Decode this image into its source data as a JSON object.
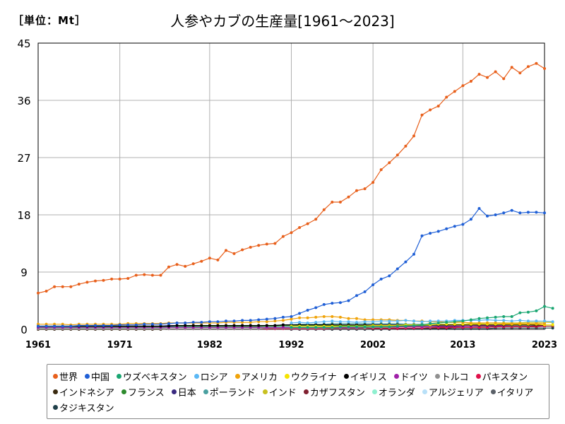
{
  "header": {
    "unit_label": "［単位：Mt］",
    "title": "人参やカブの生産量[1961～2023]"
  },
  "chart_data": {
    "type": "line",
    "title": "人参やカブの生産量[1961～2023]",
    "unit": "［単位：Mt］",
    "xlim": [
      1961,
      2023
    ],
    "ylim": [
      0,
      45
    ],
    "x_ticks": [
      1961,
      1971,
      1982,
      1992,
      2002,
      2013,
      2023
    ],
    "y_ticks": [
      0,
      9,
      18,
      27,
      36,
      45
    ],
    "grid": true,
    "legend_position": "bottom",
    "series": [
      {
        "name": "世界",
        "color": "#e8601c",
        "start": 1961,
        "values": [
          5.7,
          6.0,
          6.7,
          6.7,
          6.7,
          7.1,
          7.4,
          7.6,
          7.7,
          7.9,
          7.9,
          8.0,
          8.5,
          8.6,
          8.5,
          8.5,
          9.8,
          10.2,
          9.9,
          10.3,
          10.7,
          11.2,
          10.9,
          12.4,
          11.9,
          12.5,
          12.9,
          13.2,
          13.4,
          13.5,
          14.6,
          15.2,
          16.0,
          16.6,
          17.3,
          18.8,
          20.0,
          20.0,
          20.8,
          21.8,
          22.1,
          23.1,
          25.1,
          26.2,
          27.4,
          28.8,
          30.4,
          33.7,
          34.5,
          35.1,
          36.5,
          37.4,
          38.3,
          39.0,
          40.1,
          39.6,
          40.5,
          39.4,
          41.2,
          40.3,
          41.3,
          41.8,
          41.0
        ]
      },
      {
        "name": "中国",
        "color": "#1f5fd6",
        "start": 1961,
        "values": [
          0.5,
          0.5,
          0.5,
          0.5,
          0.5,
          0.6,
          0.6,
          0.6,
          0.6,
          0.6,
          0.7,
          0.7,
          0.7,
          0.8,
          0.8,
          0.8,
          0.9,
          1.0,
          1.0,
          1.1,
          1.1,
          1.2,
          1.2,
          1.3,
          1.3,
          1.4,
          1.4,
          1.5,
          1.6,
          1.7,
          1.9,
          2.0,
          2.5,
          3.0,
          3.4,
          3.9,
          4.1,
          4.2,
          4.5,
          5.3,
          5.9,
          7.0,
          7.9,
          8.4,
          9.5,
          10.6,
          11.8,
          14.7,
          15.1,
          15.4,
          15.8,
          16.2,
          16.5,
          17.3,
          19.0,
          17.8,
          18.0,
          18.3,
          18.7,
          18.3,
          18.4,
          18.4,
          18.3
        ]
      },
      {
        "name": "ウズベキスタン",
        "color": "#1aa672",
        "start": 1992,
        "values": [
          0.3,
          0.3,
          0.3,
          0.3,
          0.3,
          0.3,
          0.4,
          0.4,
          0.4,
          0.4,
          0.4,
          0.4,
          0.4,
          0.5,
          0.5,
          0.6,
          0.7,
          0.9,
          1.0,
          1.1,
          1.2,
          1.3,
          1.5,
          1.7,
          1.8,
          1.9,
          2.0,
          2.0,
          2.6,
          2.7,
          2.9,
          3.6,
          3.3
        ]
      },
      {
        "name": "ロシア",
        "color": "#5bb8f5",
        "start": 1992,
        "values": [
          1.0,
          1.1,
          1.0,
          1.1,
          1.2,
          1.3,
          1.2,
          1.2,
          1.1,
          1.2,
          1.2,
          1.3,
          1.3,
          1.3,
          1.4,
          1.3,
          1.2,
          1.3,
          1.3,
          1.3,
          1.4,
          1.4,
          1.4,
          1.4,
          1.5,
          1.4,
          1.4,
          1.3,
          1.4,
          1.3,
          1.3,
          1.3,
          1.2
        ]
      },
      {
        "name": "アメリカ",
        "color": "#f0a30a",
        "start": 1961,
        "values": [
          0.8,
          0.8,
          0.8,
          0.8,
          0.7,
          0.8,
          0.8,
          0.8,
          0.8,
          0.8,
          0.8,
          0.9,
          0.9,
          0.9,
          0.9,
          0.9,
          1.0,
          1.0,
          1.0,
          1.0,
          1.0,
          1.0,
          1.0,
          1.1,
          1.1,
          1.1,
          1.1,
          1.2,
          1.2,
          1.3,
          1.4,
          1.6,
          1.8,
          1.8,
          1.9,
          2.0,
          2.0,
          1.9,
          1.7,
          1.7,
          1.5,
          1.5,
          1.5,
          1.5,
          1.4,
          1.4,
          1.3,
          1.3,
          1.2,
          1.2,
          1.1,
          1.1,
          1.1,
          1.0,
          1.0,
          1.0,
          1.0,
          0.9,
          0.9,
          0.9,
          0.9,
          0.9,
          0.9
        ]
      },
      {
        "name": "ウクライナ",
        "color": "#f5e300",
        "start": 1992,
        "values": [
          0.5,
          0.5,
          0.5,
          0.5,
          0.5,
          0.5,
          0.5,
          0.5,
          0.5,
          0.5,
          0.6,
          0.6,
          0.6,
          0.6,
          0.7,
          0.7,
          0.7,
          0.7,
          0.8,
          0.8,
          0.8,
          0.8,
          0.8,
          0.8,
          0.8,
          0.8,
          0.8,
          0.8,
          0.8,
          0.8,
          0.8,
          0.7,
          0.7
        ]
      },
      {
        "name": "イギリス",
        "color": "#000000",
        "start": 1961,
        "values": [
          0.5,
          0.5,
          0.5,
          0.5,
          0.5,
          0.5,
          0.5,
          0.5,
          0.5,
          0.5,
          0.5,
          0.5,
          0.5,
          0.5,
          0.5,
          0.5,
          0.5,
          0.6,
          0.6,
          0.6,
          0.6,
          0.6,
          0.6,
          0.6,
          0.6,
          0.6,
          0.6,
          0.6,
          0.6,
          0.6,
          0.7,
          0.7,
          0.7,
          0.7,
          0.7,
          0.7,
          0.7,
          0.7,
          0.7,
          0.7,
          0.7,
          0.7,
          0.7,
          0.7,
          0.7,
          0.7,
          0.7,
          0.7,
          0.7,
          0.7,
          0.7,
          0.7,
          0.7,
          0.7,
          0.7,
          0.7,
          0.7,
          0.7,
          0.7,
          0.7,
          0.7,
          0.7,
          0.7
        ]
      },
      {
        "name": "ドイツ",
        "color": "#a020a8",
        "start": 1961,
        "values": [
          0.3,
          0.3,
          0.3,
          0.3,
          0.3,
          0.3,
          0.3,
          0.3,
          0.3,
          0.3,
          0.3,
          0.3,
          0.3,
          0.3,
          0.3,
          0.3,
          0.3,
          0.3,
          0.3,
          0.3,
          0.3,
          0.3,
          0.3,
          0.3,
          0.3,
          0.3,
          0.3,
          0.3,
          0.3,
          0.3,
          0.3,
          0.3,
          0.3,
          0.3,
          0.3,
          0.3,
          0.3,
          0.3,
          0.3,
          0.3,
          0.4,
          0.4,
          0.4,
          0.4,
          0.4,
          0.4,
          0.4,
          0.4,
          0.5,
          0.5,
          0.5,
          0.5,
          0.5,
          0.5,
          0.6,
          0.6,
          0.6,
          0.6,
          0.7,
          0.7,
          0.7,
          0.7,
          0.7
        ]
      },
      {
        "name": "トルコ",
        "color": "#909090",
        "start": 1961,
        "values": [
          0.1,
          0.1,
          0.1,
          0.1,
          0.1,
          0.1,
          0.1,
          0.1,
          0.1,
          0.1,
          0.1,
          0.1,
          0.1,
          0.1,
          0.1,
          0.1,
          0.1,
          0.1,
          0.1,
          0.1,
          0.1,
          0.1,
          0.1,
          0.1,
          0.1,
          0.1,
          0.1,
          0.1,
          0.2,
          0.2,
          0.2,
          0.2,
          0.2,
          0.2,
          0.2,
          0.2,
          0.2,
          0.2,
          0.2,
          0.2,
          0.2,
          0.3,
          0.3,
          0.3,
          0.4,
          0.4,
          0.4,
          0.4,
          0.4,
          0.5,
          0.5,
          0.6,
          0.6,
          0.6,
          0.6,
          0.6,
          0.6,
          0.6,
          0.6,
          0.6,
          0.6,
          0.7,
          0.7
        ]
      },
      {
        "name": "パキスタン",
        "color": "#e0104a",
        "start": 1961,
        "values": [
          0.1,
          0.1,
          0.1,
          0.1,
          0.1,
          0.1,
          0.1,
          0.1,
          0.1,
          0.1,
          0.1,
          0.1,
          0.1,
          0.1,
          0.1,
          0.1,
          0.1,
          0.1,
          0.1,
          0.1,
          0.1,
          0.1,
          0.1,
          0.1,
          0.1,
          0.1,
          0.1,
          0.1,
          0.1,
          0.1,
          0.1,
          0.1,
          0.1,
          0.1,
          0.1,
          0.1,
          0.2,
          0.2,
          0.2,
          0.2,
          0.2,
          0.2,
          0.2,
          0.2,
          0.2,
          0.2,
          0.2,
          0.2,
          0.3,
          0.3,
          0.3,
          0.3,
          0.3,
          0.3,
          0.3,
          0.3,
          0.4,
          0.4,
          0.4,
          0.4,
          0.4,
          0.5,
          0.5
        ]
      },
      {
        "name": "インドネシア",
        "color": "#3a2a10",
        "start": 1961,
        "values": [
          0.0,
          0.0,
          0.0,
          0.0,
          0.0,
          0.0,
          0.0,
          0.0,
          0.0,
          0.0,
          0.0,
          0.0,
          0.0,
          0.0,
          0.0,
          0.0,
          0.1,
          0.1,
          0.1,
          0.1,
          0.1,
          0.1,
          0.1,
          0.1,
          0.1,
          0.1,
          0.1,
          0.1,
          0.1,
          0.1,
          0.2,
          0.2,
          0.2,
          0.2,
          0.2,
          0.2,
          0.2,
          0.3,
          0.3,
          0.3,
          0.3,
          0.3,
          0.3,
          0.3,
          0.4,
          0.4,
          0.4,
          0.4,
          0.4,
          0.4,
          0.4,
          0.4,
          0.5,
          0.5,
          0.5,
          0.5,
          0.5,
          0.6,
          0.6,
          0.6,
          0.6,
          0.6,
          0.6
        ]
      },
      {
        "name": "フランス",
        "color": "#2e8b2e",
        "start": 1961,
        "values": [
          0.4,
          0.4,
          0.4,
          0.4,
          0.4,
          0.4,
          0.4,
          0.4,
          0.4,
          0.4,
          0.4,
          0.4,
          0.4,
          0.4,
          0.4,
          0.4,
          0.5,
          0.5,
          0.5,
          0.5,
          0.5,
          0.5,
          0.5,
          0.5,
          0.5,
          0.5,
          0.5,
          0.5,
          0.5,
          0.5,
          0.6,
          0.6,
          0.6,
          0.6,
          0.6,
          0.6,
          0.6,
          0.6,
          0.6,
          0.6,
          0.6,
          0.6,
          0.6,
          0.6,
          0.6,
          0.6,
          0.6,
          0.6,
          0.6,
          0.6,
          0.6,
          0.6,
          0.6,
          0.6,
          0.6,
          0.6,
          0.6,
          0.6,
          0.6,
          0.6,
          0.6,
          0.6,
          0.6
        ]
      },
      {
        "name": "日本",
        "color": "#3a2a80",
        "start": 1961,
        "values": [
          0.4,
          0.4,
          0.4,
          0.4,
          0.4,
          0.4,
          0.4,
          0.4,
          0.5,
          0.5,
          0.5,
          0.5,
          0.5,
          0.5,
          0.5,
          0.5,
          0.6,
          0.6,
          0.6,
          0.6,
          0.6,
          0.6,
          0.6,
          0.6,
          0.6,
          0.6,
          0.6,
          0.6,
          0.6,
          0.6,
          0.7,
          0.7,
          0.7,
          0.7,
          0.7,
          0.7,
          0.7,
          0.7,
          0.6,
          0.6,
          0.6,
          0.6,
          0.6,
          0.6,
          0.6,
          0.6,
          0.6,
          0.6,
          0.6,
          0.6,
          0.6,
          0.6,
          0.6,
          0.6,
          0.6,
          0.6,
          0.6,
          0.6,
          0.6,
          0.6,
          0.5,
          0.5,
          0.5
        ]
      },
      {
        "name": "ポーランド",
        "color": "#4aa0a0",
        "start": 1961,
        "values": [
          0.3,
          0.3,
          0.3,
          0.3,
          0.3,
          0.3,
          0.3,
          0.3,
          0.3,
          0.3,
          0.3,
          0.3,
          0.4,
          0.4,
          0.4,
          0.4,
          0.4,
          0.4,
          0.4,
          0.4,
          0.4,
          0.5,
          0.5,
          0.5,
          0.5,
          0.5,
          0.6,
          0.6,
          0.6,
          0.6,
          0.7,
          0.7,
          0.8,
          0.8,
          0.8,
          0.8,
          0.9,
          0.9,
          0.9,
          0.9,
          0.9,
          0.9,
          0.9,
          0.9,
          0.9,
          0.8,
          0.8,
          0.8,
          0.8,
          0.8,
          0.8,
          0.8,
          0.8,
          0.8,
          0.8,
          0.8,
          0.8,
          0.7,
          0.7,
          0.7,
          0.7,
          0.7,
          0.7
        ]
      },
      {
        "name": "インド",
        "color": "#c8c020",
        "start": 1992,
        "values": [
          0.3,
          0.3,
          0.3,
          0.3,
          0.4,
          0.4,
          0.4,
          0.4,
          0.4,
          0.4,
          0.4,
          0.4,
          0.4,
          0.5,
          0.5,
          0.5,
          0.5,
          0.6,
          0.6,
          0.7,
          0.7,
          0.8,
          0.9,
          0.9,
          1.0,
          1.0,
          1.0,
          1.0,
          1.0,
          1.1,
          1.1,
          1.1,
          1.1
        ]
      },
      {
        "name": "カザフスタン",
        "color": "#802030",
        "start": 1992,
        "values": [
          0.1,
          0.1,
          0.1,
          0.1,
          0.1,
          0.1,
          0.1,
          0.1,
          0.1,
          0.1,
          0.1,
          0.1,
          0.1,
          0.1,
          0.2,
          0.2,
          0.2,
          0.2,
          0.2,
          0.2,
          0.3,
          0.3,
          0.3,
          0.3,
          0.3,
          0.4,
          0.4,
          0.4,
          0.4,
          0.4,
          0.4,
          0.5,
          0.5
        ]
      },
      {
        "name": "オランダ",
        "color": "#8ff0d0",
        "start": 1961,
        "values": [
          0.2,
          0.2,
          0.2,
          0.2,
          0.2,
          0.2,
          0.2,
          0.2,
          0.2,
          0.2,
          0.2,
          0.2,
          0.2,
          0.2,
          0.2,
          0.2,
          0.3,
          0.3,
          0.3,
          0.3,
          0.3,
          0.3,
          0.3,
          0.3,
          0.3,
          0.3,
          0.3,
          0.3,
          0.4,
          0.4,
          0.4,
          0.4,
          0.4,
          0.4,
          0.4,
          0.5,
          0.5,
          0.5,
          0.5,
          0.5,
          0.5,
          0.5,
          0.5,
          0.5,
          0.5,
          0.5,
          0.5,
          0.5,
          0.5,
          0.5,
          0.5,
          0.5,
          0.5,
          0.5,
          0.6,
          0.6,
          0.6,
          0.6,
          0.6,
          0.6,
          0.6,
          0.6,
          0.6
        ]
      },
      {
        "name": "アルジェリア",
        "color": "#b8e0f8",
        "start": 1961,
        "values": [
          0.0,
          0.0,
          0.0,
          0.0,
          0.0,
          0.0,
          0.0,
          0.0,
          0.0,
          0.0,
          0.0,
          0.0,
          0.0,
          0.0,
          0.0,
          0.0,
          0.1,
          0.1,
          0.1,
          0.1,
          0.1,
          0.1,
          0.1,
          0.1,
          0.1,
          0.1,
          0.1,
          0.1,
          0.1,
          0.1,
          0.1,
          0.1,
          0.1,
          0.1,
          0.1,
          0.1,
          0.2,
          0.2,
          0.2,
          0.2,
          0.2,
          0.2,
          0.2,
          0.2,
          0.2,
          0.2,
          0.2,
          0.2,
          0.3,
          0.3,
          0.3,
          0.3,
          0.3,
          0.3,
          0.3,
          0.3,
          0.4,
          0.4,
          0.4,
          0.4,
          0.4,
          0.4,
          0.4
        ]
      },
      {
        "name": "イタリア",
        "color": "#5a6068",
        "start": 1961,
        "values": [
          0.3,
          0.3,
          0.3,
          0.3,
          0.3,
          0.3,
          0.3,
          0.3,
          0.3,
          0.3,
          0.3,
          0.3,
          0.3,
          0.3,
          0.3,
          0.3,
          0.4,
          0.4,
          0.4,
          0.4,
          0.4,
          0.4,
          0.4,
          0.4,
          0.4,
          0.4,
          0.4,
          0.4,
          0.5,
          0.5,
          0.5,
          0.5,
          0.5,
          0.5,
          0.5,
          0.5,
          0.5,
          0.5,
          0.5,
          0.5,
          0.5,
          0.5,
          0.5,
          0.5,
          0.5,
          0.5,
          0.5,
          0.5,
          0.5,
          0.5,
          0.5,
          0.5,
          0.5,
          0.5,
          0.5,
          0.5,
          0.5,
          0.5,
          0.5,
          0.5,
          0.5,
          0.5,
          0.5
        ]
      },
      {
        "name": "タジキスタン",
        "color": "#20404a",
        "start": 1992,
        "values": [
          0.0,
          0.0,
          0.0,
          0.0,
          0.0,
          0.0,
          0.0,
          0.0,
          0.0,
          0.0,
          0.0,
          0.0,
          0.0,
          0.1,
          0.1,
          0.1,
          0.1,
          0.1,
          0.1,
          0.1,
          0.1,
          0.1,
          0.1,
          0.1,
          0.1,
          0.2,
          0.2,
          0.2,
          0.2,
          0.2,
          0.2,
          0.2,
          0.2
        ]
      }
    ]
  }
}
